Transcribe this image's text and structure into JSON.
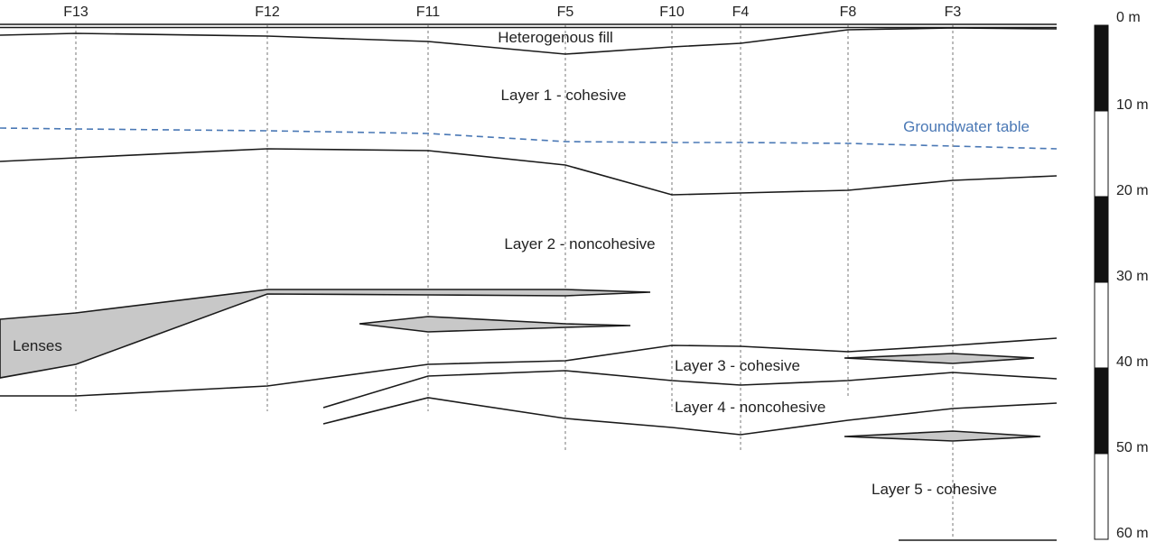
{
  "boreholes": [
    "F13",
    "F12",
    "F11",
    "F5",
    "F10",
    "F4",
    "F8",
    "F3"
  ],
  "layers": {
    "fill": "Heterogenous fill",
    "layer1": "Layer 1 - cohesive",
    "layer2": "Layer 2 - noncohesive",
    "layer3": "Layer 3 - cohesive",
    "layer4": "Layer 4 - noncohesive",
    "layer5": "Layer 5 - cohesive",
    "lenses": "Lenses",
    "groundwater": "Groundwater table"
  },
  "scale": {
    "labels": [
      "0 m",
      "10 m",
      "20 m",
      "30 m",
      "40 m",
      "50 m",
      "60 m"
    ]
  },
  "colors": {
    "groundwater": "#4a78b5",
    "lens_fill": "#c8c8c8"
  }
}
